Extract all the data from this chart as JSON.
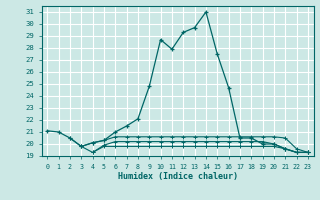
{
  "xlabel": "Humidex (Indice chaleur)",
  "background_color": "#cce8e5",
  "grid_color": "#ffffff",
  "line_color": "#006666",
  "xlim": [
    -0.5,
    23.5
  ],
  "ylim": [
    19,
    31.5
  ],
  "yticks": [
    19,
    20,
    21,
    22,
    23,
    24,
    25,
    26,
    27,
    28,
    29,
    30,
    31
  ],
  "xticks": [
    0,
    1,
    2,
    3,
    4,
    5,
    6,
    7,
    8,
    9,
    10,
    11,
    12,
    13,
    14,
    15,
    16,
    17,
    18,
    19,
    20,
    21,
    22,
    23
  ],
  "series": [
    {
      "x": [
        0,
        1,
        2,
        3,
        4,
        5,
        6,
        7,
        8,
        9,
        10,
        11,
        12,
        13,
        14,
        15,
        16,
        17,
        18,
        19,
        20,
        21,
        22,
        23
      ],
      "y": [
        21.1,
        21.0,
        20.5,
        19.8,
        20.1,
        20.3,
        21.0,
        21.5,
        22.1,
        24.8,
        28.7,
        27.9,
        29.3,
        29.7,
        31.0,
        27.5,
        24.7,
        20.5,
        20.5,
        20.0,
        20.0,
        19.6,
        19.3,
        19.3
      ]
    },
    {
      "x": [
        2,
        3,
        4,
        5,
        6,
        7,
        8,
        9,
        10,
        11,
        12,
        13,
        14,
        15,
        16,
        17,
        18,
        19,
        20,
        21,
        22,
        23
      ],
      "y": [
        20.5,
        19.8,
        20.1,
        20.3,
        20.6,
        20.6,
        20.6,
        20.6,
        20.6,
        20.6,
        20.6,
        20.6,
        20.6,
        20.6,
        20.6,
        20.6,
        20.6,
        20.6,
        20.6,
        20.5,
        19.6,
        19.3
      ]
    },
    {
      "x": [
        3,
        4,
        5,
        6,
        7,
        8,
        9,
        10,
        11,
        12,
        13,
        14,
        15,
        16,
        17,
        18,
        19,
        20,
        21,
        22,
        23
      ],
      "y": [
        19.8,
        19.3,
        19.9,
        20.2,
        20.2,
        20.2,
        20.2,
        20.2,
        20.2,
        20.2,
        20.2,
        20.2,
        20.2,
        20.2,
        20.2,
        20.2,
        20.2,
        20.0,
        19.6,
        19.3,
        19.3
      ]
    },
    {
      "x": [
        4,
        5,
        6,
        7,
        8,
        9,
        10,
        11,
        12,
        13,
        14,
        15,
        16,
        17,
        18,
        19,
        20,
        21,
        22,
        23
      ],
      "y": [
        19.3,
        19.8,
        19.8,
        19.8,
        19.8,
        19.8,
        19.8,
        19.8,
        19.8,
        19.8,
        19.8,
        19.8,
        19.8,
        19.8,
        19.8,
        19.8,
        19.8,
        19.6,
        19.3,
        19.3
      ]
    }
  ]
}
